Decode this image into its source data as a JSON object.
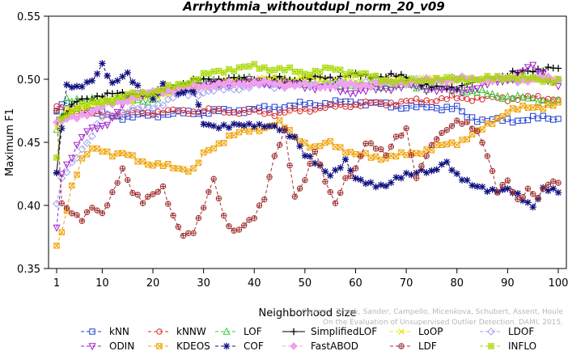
{
  "chart_data": {
    "type": "line",
    "title": "Arrhythmia_withoutdupl_norm_20_v09",
    "xlabel": "Neighborhood size",
    "ylabel": "Maximum F1",
    "xlim": [
      1,
      100
    ],
    "ylim": [
      0.35,
      0.55
    ],
    "xticks": [
      1,
      10,
      20,
      30,
      40,
      50,
      60,
      70,
      80,
      90,
      100
    ],
    "yticks": [
      0.35,
      0.4,
      0.45,
      0.5,
      0.55
    ],
    "ytick_labels": [
      "0.35",
      "0.40",
      "0.45",
      "0.50",
      "0.55"
    ],
    "grid": false,
    "legend_position": "bottom",
    "credit": "Campos, Zimek, Sander, Campello, Micenkova, Schubert, Assent, Houle\nOn the Evaluation of Unsupervised Outlier Detection. DAMI, 2015.",
    "series": [
      {
        "name": "kNN",
        "color": "#1f3fd6",
        "marker": "square",
        "dash": "4,3",
        "knots": [
          [
            1,
            0.473
          ],
          [
            2,
            0.48
          ],
          [
            5,
            0.477
          ],
          [
            10,
            0.472
          ],
          [
            15,
            0.47
          ],
          [
            20,
            0.472
          ],
          [
            30,
            0.474
          ],
          [
            40,
            0.476
          ],
          [
            45,
            0.478
          ],
          [
            50,
            0.48
          ],
          [
            55,
            0.481
          ],
          [
            60,
            0.482
          ],
          [
            65,
            0.48
          ],
          [
            70,
            0.478
          ],
          [
            75,
            0.478
          ],
          [
            80,
            0.477
          ],
          [
            82,
            0.47
          ],
          [
            85,
            0.468
          ],
          [
            90,
            0.467
          ],
          [
            95,
            0.469
          ],
          [
            100,
            0.469
          ]
        ]
      },
      {
        "name": "kNNW",
        "color": "#d62b2b",
        "marker": "circle",
        "dash": "4,3",
        "knots": [
          [
            1,
            0.478
          ],
          [
            3,
            0.475
          ],
          [
            10,
            0.472
          ],
          [
            20,
            0.474
          ],
          [
            30,
            0.475
          ],
          [
            40,
            0.474
          ],
          [
            45,
            0.473
          ],
          [
            50,
            0.476
          ],
          [
            60,
            0.48
          ],
          [
            70,
            0.482
          ],
          [
            80,
            0.485
          ],
          [
            90,
            0.485
          ],
          [
            100,
            0.485
          ]
        ]
      },
      {
        "name": "LOF",
        "color": "#3cc83c",
        "marker": "triangle-up",
        "dash": "4,3",
        "knots": [
          [
            1,
            0.46
          ],
          [
            3,
            0.485
          ],
          [
            6,
            0.482
          ],
          [
            10,
            0.485
          ],
          [
            20,
            0.483
          ],
          [
            25,
            0.495
          ],
          [
            30,
            0.498
          ],
          [
            40,
            0.5
          ],
          [
            50,
            0.498
          ],
          [
            60,
            0.495
          ],
          [
            70,
            0.495
          ],
          [
            80,
            0.492
          ],
          [
            90,
            0.486
          ],
          [
            100,
            0.482
          ]
        ]
      },
      {
        "name": "SimplifiedLOF",
        "color": "#000000",
        "marker": "plus",
        "dash": "",
        "knots": [
          [
            1,
            0.427
          ],
          [
            2,
            0.47
          ],
          [
            5,
            0.482
          ],
          [
            10,
            0.488
          ],
          [
            20,
            0.488
          ],
          [
            25,
            0.495
          ],
          [
            30,
            0.5
          ],
          [
            40,
            0.5
          ],
          [
            50,
            0.5
          ],
          [
            60,
            0.503
          ],
          [
            70,
            0.502
          ],
          [
            75,
            0.493
          ],
          [
            80,
            0.494
          ],
          [
            90,
            0.503
          ],
          [
            95,
            0.508
          ],
          [
            100,
            0.508
          ]
        ]
      },
      {
        "name": "LoOP",
        "color": "#e6e600",
        "marker": "x",
        "dash": "4,3",
        "knots": [
          [
            1,
            0.462
          ],
          [
            3,
            0.475
          ],
          [
            10,
            0.482
          ],
          [
            20,
            0.486
          ],
          [
            30,
            0.495
          ],
          [
            40,
            0.5
          ],
          [
            50,
            0.5
          ],
          [
            60,
            0.498
          ],
          [
            70,
            0.499
          ],
          [
            80,
            0.5
          ],
          [
            90,
            0.5
          ],
          [
            100,
            0.5
          ]
        ]
      },
      {
        "name": "LDOF",
        "color": "#a0a0f0",
        "marker": "diamond",
        "dash": "4,3",
        "knots": [
          [
            1,
            0.4
          ],
          [
            2,
            0.42
          ],
          [
            5,
            0.44
          ],
          [
            8,
            0.455
          ],
          [
            10,
            0.47
          ],
          [
            15,
            0.475
          ],
          [
            20,
            0.478
          ],
          [
            25,
            0.487
          ],
          [
            30,
            0.49
          ],
          [
            40,
            0.495
          ],
          [
            50,
            0.495
          ],
          [
            60,
            0.497
          ],
          [
            70,
            0.498
          ],
          [
            80,
            0.5
          ],
          [
            90,
            0.5
          ],
          [
            100,
            0.5
          ]
        ]
      },
      {
        "name": "ODIN",
        "color": "#a020c8",
        "marker": "triangle-down",
        "dash": "4,3",
        "knots": [
          [
            1,
            0.382
          ],
          [
            2,
            0.425
          ],
          [
            4,
            0.44
          ],
          [
            6,
            0.455
          ],
          [
            8,
            0.46
          ],
          [
            10,
            0.462
          ],
          [
            12,
            0.47
          ],
          [
            15,
            0.485
          ],
          [
            20,
            0.49
          ],
          [
            25,
            0.492
          ],
          [
            30,
            0.495
          ],
          [
            35,
            0.497
          ],
          [
            40,
            0.498
          ],
          [
            50,
            0.495
          ],
          [
            60,
            0.49
          ],
          [
            70,
            0.495
          ],
          [
            80,
            0.49
          ],
          [
            90,
            0.5
          ],
          [
            95,
            0.51
          ],
          [
            100,
            0.495
          ]
        ]
      },
      {
        "name": "KDEOS",
        "color": "#f0a000",
        "marker": "square-x",
        "dash": "4,3",
        "knots": [
          [
            1,
            0.368
          ],
          [
            2,
            0.38
          ],
          [
            4,
            0.415
          ],
          [
            6,
            0.435
          ],
          [
            8,
            0.445
          ],
          [
            10,
            0.445
          ],
          [
            12,
            0.44
          ],
          [
            15,
            0.44
          ],
          [
            20,
            0.432
          ],
          [
            25,
            0.43
          ],
          [
            28,
            0.428
          ],
          [
            30,
            0.44
          ],
          [
            35,
            0.455
          ],
          [
            40,
            0.46
          ],
          [
            45,
            0.465
          ],
          [
            48,
            0.455
          ],
          [
            52,
            0.445
          ],
          [
            55,
            0.45
          ],
          [
            60,
            0.44
          ],
          [
            65,
            0.438
          ],
          [
            70,
            0.44
          ],
          [
            75,
            0.445
          ],
          [
            80,
            0.45
          ],
          [
            85,
            0.46
          ],
          [
            90,
            0.475
          ],
          [
            95,
            0.478
          ],
          [
            100,
            0.48
          ]
        ]
      },
      {
        "name": "COF",
        "color": "#101080",
        "marker": "asterisk",
        "dash": "4,3",
        "knots": [
          [
            1,
            0.428
          ],
          [
            3,
            0.495
          ],
          [
            5,
            0.492
          ],
          [
            8,
            0.5
          ],
          [
            10,
            0.512
          ],
          [
            12,
            0.495
          ],
          [
            15,
            0.505
          ],
          [
            18,
            0.49
          ],
          [
            20,
            0.483
          ],
          [
            22,
            0.495
          ],
          [
            25,
            0.49
          ],
          [
            28,
            0.49
          ],
          [
            30,
            0.465
          ],
          [
            35,
            0.462
          ],
          [
            40,
            0.465
          ],
          [
            45,
            0.46
          ],
          [
            48,
            0.455
          ],
          [
            50,
            0.44
          ],
          [
            53,
            0.43
          ],
          [
            55,
            0.425
          ],
          [
            58,
            0.435
          ],
          [
            60,
            0.42
          ],
          [
            63,
            0.418
          ],
          [
            66,
            0.415
          ],
          [
            70,
            0.425
          ],
          [
            73,
            0.428
          ],
          [
            75,
            0.425
          ],
          [
            78,
            0.435
          ],
          [
            80,
            0.425
          ],
          [
            83,
            0.415
          ],
          [
            86,
            0.413
          ],
          [
            90,
            0.412
          ],
          [
            93,
            0.405
          ],
          [
            95,
            0.4
          ],
          [
            97,
            0.413
          ],
          [
            100,
            0.41
          ]
        ]
      },
      {
        "name": "FastABOD",
        "color": "#f0a0f0",
        "marker": "diamond-filled",
        "dash": "4,3",
        "knots": [
          [
            1,
            0.465
          ],
          [
            5,
            0.47
          ],
          [
            10,
            0.478
          ],
          [
            20,
            0.49
          ],
          [
            30,
            0.495
          ],
          [
            40,
            0.497
          ],
          [
            50,
            0.495
          ],
          [
            60,
            0.495
          ],
          [
            70,
            0.498
          ],
          [
            80,
            0.5
          ],
          [
            90,
            0.5
          ],
          [
            100,
            0.5
          ]
        ]
      },
      {
        "name": "LDF",
        "color": "#a03030",
        "marker": "circle-plus",
        "dash": "4,3",
        "knots": [
          [
            1,
            0.475
          ],
          [
            2,
            0.4
          ],
          [
            4,
            0.395
          ],
          [
            6,
            0.39
          ],
          [
            8,
            0.398
          ],
          [
            10,
            0.392
          ],
          [
            12,
            0.41
          ],
          [
            14,
            0.43
          ],
          [
            16,
            0.41
          ],
          [
            18,
            0.402
          ],
          [
            20,
            0.41
          ],
          [
            22,
            0.415
          ],
          [
            24,
            0.39
          ],
          [
            26,
            0.375
          ],
          [
            28,
            0.38
          ],
          [
            30,
            0.4
          ],
          [
            32,
            0.42
          ],
          [
            34,
            0.39
          ],
          [
            36,
            0.38
          ],
          [
            38,
            0.385
          ],
          [
            40,
            0.39
          ],
          [
            42,
            0.405
          ],
          [
            44,
            0.44
          ],
          [
            46,
            0.46
          ],
          [
            48,
            0.405
          ],
          [
            50,
            0.42
          ],
          [
            52,
            0.445
          ],
          [
            54,
            0.42
          ],
          [
            56,
            0.4
          ],
          [
            58,
            0.42
          ],
          [
            60,
            0.43
          ],
          [
            62,
            0.45
          ],
          [
            64,
            0.445
          ],
          [
            66,
            0.44
          ],
          [
            68,
            0.455
          ],
          [
            70,
            0.46
          ],
          [
            72,
            0.42
          ],
          [
            74,
            0.44
          ],
          [
            76,
            0.455
          ],
          [
            78,
            0.46
          ],
          [
            80,
            0.465
          ],
          [
            82,
            0.465
          ],
          [
            84,
            0.46
          ],
          [
            86,
            0.44
          ],
          [
            88,
            0.41
          ],
          [
            90,
            0.42
          ],
          [
            92,
            0.405
          ],
          [
            94,
            0.412
          ],
          [
            96,
            0.405
          ],
          [
            98,
            0.418
          ],
          [
            100,
            0.42
          ]
        ]
      },
      {
        "name": "INFLO",
        "color": "#a8d800",
        "marker": "star-box",
        "dash": "4,3",
        "knots": [
          [
            1,
            0.436
          ],
          [
            2,
            0.47
          ],
          [
            5,
            0.478
          ],
          [
            10,
            0.482
          ],
          [
            15,
            0.487
          ],
          [
            20,
            0.49
          ],
          [
            25,
            0.495
          ],
          [
            30,
            0.503
          ],
          [
            35,
            0.508
          ],
          [
            40,
            0.51
          ],
          [
            45,
            0.508
          ],
          [
            50,
            0.505
          ],
          [
            55,
            0.508
          ],
          [
            60,
            0.505
          ],
          [
            65,
            0.5
          ],
          [
            70,
            0.498
          ],
          [
            75,
            0.5
          ],
          [
            80,
            0.5
          ],
          [
            85,
            0.5
          ],
          [
            90,
            0.502
          ],
          [
            95,
            0.5
          ],
          [
            100,
            0.499
          ]
        ]
      }
    ]
  }
}
